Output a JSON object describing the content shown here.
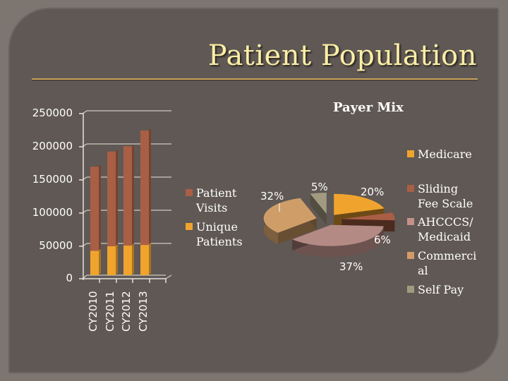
{
  "slide": {
    "title": "Patient Population",
    "colors": {
      "background": "#7d7570",
      "panel": "#5f5854",
      "title": "#fbeea6",
      "rule": "#c8a45c"
    }
  },
  "chart_data": [
    {
      "type": "bar",
      "stacked": true,
      "title": "",
      "categories": [
        "CY2010",
        "CY2011",
        "CY2012",
        "CY2013"
      ],
      "series": [
        {
          "name": "Unique Patients",
          "color": "#f0a42e",
          "values": [
            37000,
            44000,
            45000,
            46000
          ]
        },
        {
          "name": "Patient Visits",
          "color": "#a95f45",
          "values": [
            128000,
            144000,
            151000,
            174000
          ]
        }
      ],
      "yticks": [
        "0",
        "50000",
        "100000",
        "150000",
        "200000",
        "250000"
      ],
      "ylim": [
        0,
        250000
      ],
      "xlabel": "",
      "ylabel": "",
      "grid": true,
      "legend_position": "right",
      "legend": [
        "Patient Visits",
        "Unique Patients"
      ]
    },
    {
      "type": "pie",
      "title": "Payer Mix",
      "categories": [
        "Medicare",
        "Sliding Fee Scale",
        "AHCCCS/ Medicaid",
        "Commercial",
        "Self Pay"
      ],
      "values": [
        20,
        6,
        37,
        32,
        5
      ],
      "labels": [
        "20%",
        "6%",
        "37%",
        "32%",
        "5%"
      ],
      "colors": [
        "#f0a42e",
        "#a95f45",
        "#b48a84",
        "#cf9e68",
        "#a29a80"
      ],
      "legend_position": "right",
      "legend": [
        "Medicare",
        "Sliding Fee Scale",
        "AHCCCS/ Medicaid",
        "Commerci al",
        "Self Pay"
      ]
    }
  ],
  "bar_legend": {
    "items": [
      {
        "line1": "Patient",
        "line2": "Visits",
        "color": "#a95f45"
      },
      {
        "line1": "Unique",
        "line2": "Patients",
        "color": "#f0a42e"
      }
    ]
  },
  "pie_legend": {
    "items": [
      {
        "line1": "Medicare",
        "line2": "",
        "color": "#f0a42e"
      },
      {
        "line1": "Sliding",
        "line2": "Fee Scale",
        "color": "#a95f45"
      },
      {
        "line1": "AHCCCS/",
        "line2": "Medicaid",
        "color": "#c4918a"
      },
      {
        "line1": "Commerci",
        "line2": "al",
        "color": "#d29b68"
      },
      {
        "line1": "Self Pay",
        "line2": "",
        "color": "#a29a80"
      }
    ]
  }
}
